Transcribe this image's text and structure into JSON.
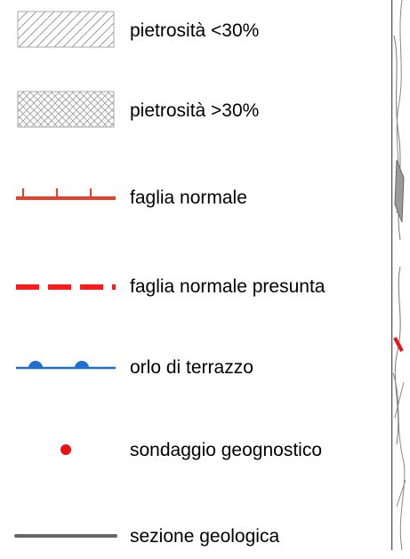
{
  "legend": {
    "items": [
      {
        "id": "stoniness-low",
        "label": "pietrosità <30%",
        "icon": "diagonal-hatch-swatch",
        "color": "#9a9a9a"
      },
      {
        "id": "stoniness-high",
        "label": "pietrosità >30%",
        "icon": "crosshatch-swatch",
        "color": "#9a9a9a"
      },
      {
        "id": "normal-fault",
        "label": "faglia normale",
        "icon": "normal-fault-line",
        "color": "#e8402a"
      },
      {
        "id": "presumed-fault",
        "label": "faglia normale presunta",
        "icon": "dashed-fault-line",
        "color": "#ff1a1a"
      },
      {
        "id": "terrace-edge",
        "label": "orlo di terrazzo",
        "icon": "terrace-edge-line",
        "color": "#1f6fd1"
      },
      {
        "id": "borehole",
        "label": "sondaggio geognostico",
        "icon": "borehole-dot",
        "color": "#ee1111"
      },
      {
        "id": "section",
        "label": "sezione geologica",
        "icon": "section-line",
        "color": "#666666"
      }
    ]
  }
}
